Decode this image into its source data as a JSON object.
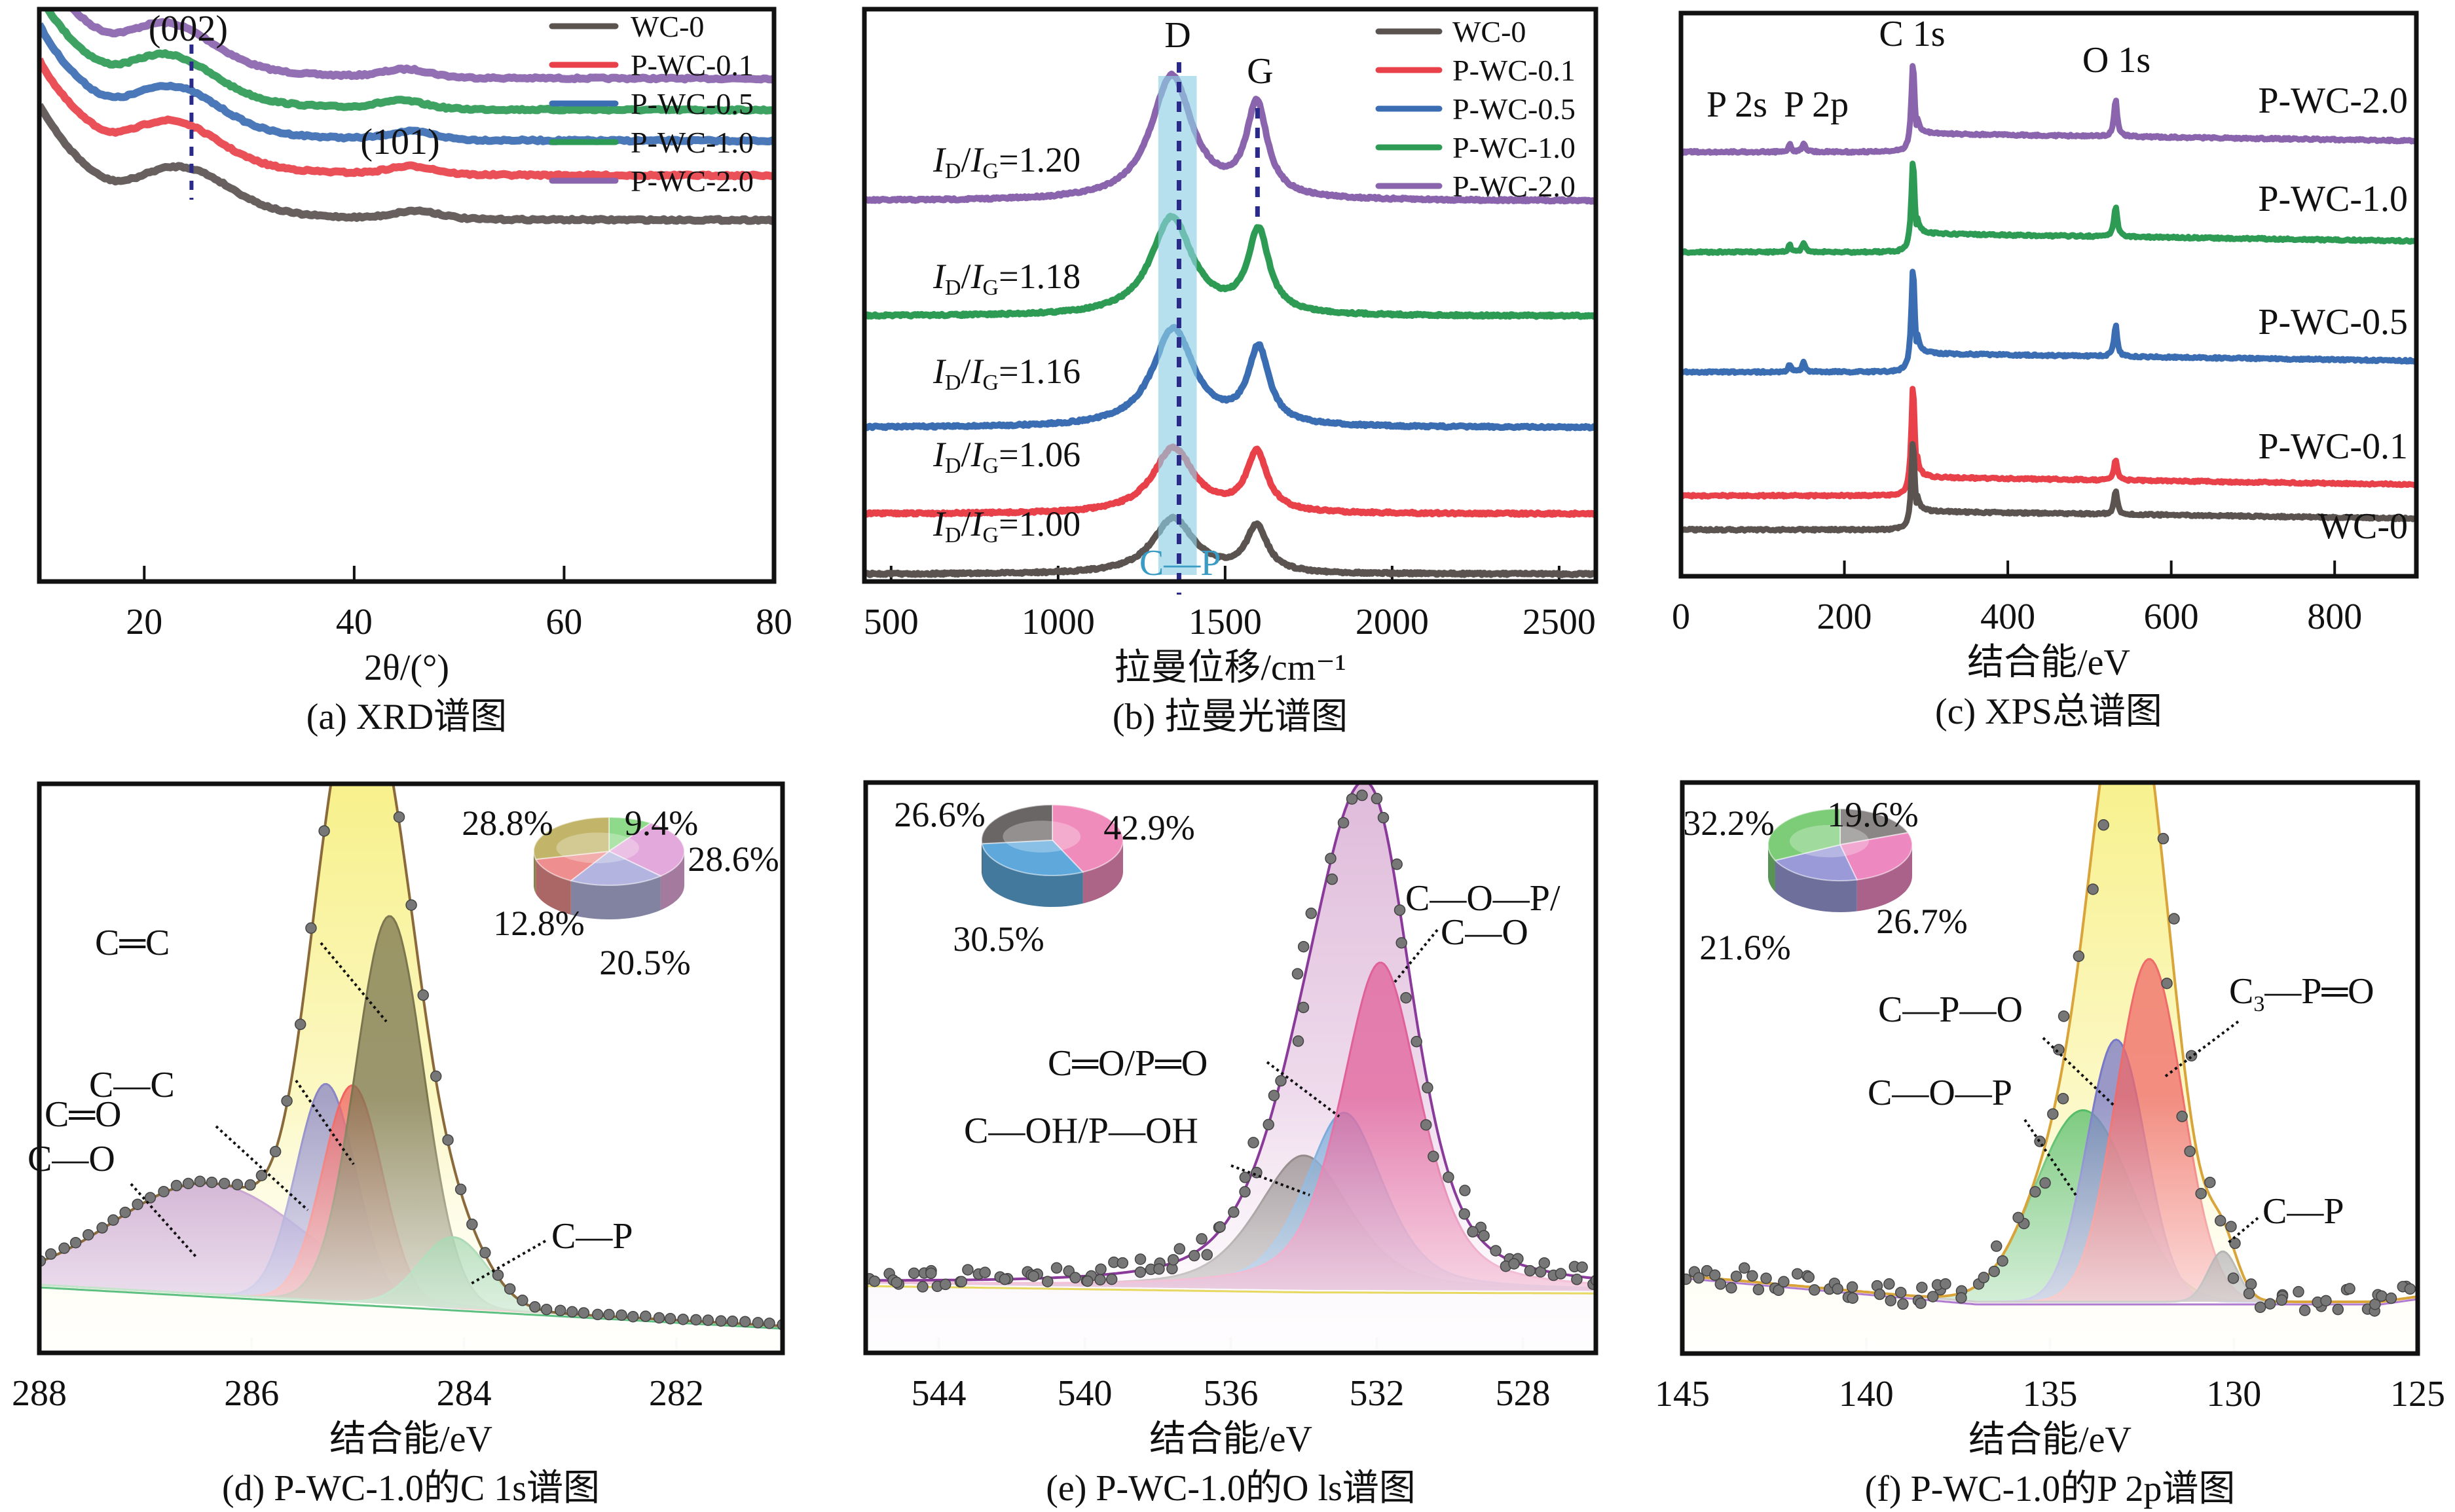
{
  "figure": {
    "panels": [
      "a",
      "b",
      "c",
      "d",
      "e",
      "f"
    ]
  },
  "colors": {
    "WC-0": "#5a5350",
    "P-WC-0.1": "#e8414a",
    "P-WC-0.5": "#3b6db3",
    "P-WC-1.0": "#2e9b55",
    "P-WC-2.0": "#8a64ad",
    "marker_line": "#2a2a8a",
    "band": "#8fd0e3",
    "cp_label": "#3a9bc4"
  },
  "chart_data": [
    {
      "id": "a",
      "type": "line",
      "caption": "(a) XRD谱图",
      "title": "",
      "xlabel": "2θ/(°)",
      "ylabel": "",
      "xlim": [
        10,
        80
      ],
      "xticks": [
        20,
        40,
        60,
        80
      ],
      "grid": false,
      "legend": {
        "placement": "top-right",
        "entries": [
          "WC-0",
          "P-WC-0.1",
          "P-WC-0.5",
          "P-WC-1.0",
          "P-WC-2.0"
        ]
      },
      "annotations": [
        {
          "text": "(002)",
          "x": 24.5
        },
        {
          "text": "(101)",
          "x": 45
        }
      ],
      "reference_line_x": 24.5,
      "series": [
        {
          "name": "P-WC-2.0",
          "offset": 4,
          "peak002": 22.5,
          "peak101": 45
        },
        {
          "name": "P-WC-1.0",
          "offset": 3,
          "peak002": 22.5,
          "peak101": 44.5
        },
        {
          "name": "P-WC-0.5",
          "offset": 2,
          "peak002": 23,
          "peak101": 45.5
        },
        {
          "name": "P-WC-0.1",
          "offset": 1,
          "peak002": 23,
          "peak101": 45.5
        },
        {
          "name": "WC-0",
          "offset": 0,
          "peak002": 24,
          "peak101": 46
        }
      ]
    },
    {
      "id": "b",
      "type": "line",
      "caption": "(b) 拉曼光谱图",
      "title": "",
      "xlabel": "拉曼位移/cm⁻¹",
      "ylabel": "",
      "xlim": [
        420,
        2610
      ],
      "xticks": [
        500,
        1000,
        1500,
        2000,
        2500
      ],
      "grid": false,
      "legend": {
        "placement": "top-right",
        "entries": [
          "WC-0",
          "P-WC-0.1",
          "P-WC-0.5",
          "P-WC-1.0",
          "P-WC-2.0"
        ]
      },
      "peak_labels": [
        {
          "text": "D",
          "x": 1350
        },
        {
          "text": "G",
          "x": 1590
        }
      ],
      "highlight_band": {
        "x_from": 1300,
        "x_to": 1415,
        "label": "C—P"
      },
      "series": [
        {
          "name": "P-WC-2.0",
          "ratio_label": "1.20",
          "D": 1340,
          "G": 1595,
          "id_ig": 1.2
        },
        {
          "name": "P-WC-1.0",
          "ratio_label": "1.18",
          "D": 1340,
          "G": 1600,
          "id_ig": 1.18
        },
        {
          "name": "P-WC-0.5",
          "ratio_label": "1.16",
          "D": 1345,
          "G": 1600,
          "id_ig": 1.16
        },
        {
          "name": "P-WC-0.1",
          "ratio_label": "1.06",
          "D": 1345,
          "G": 1595,
          "id_ig": 1.06
        },
        {
          "name": "WC-0",
          "ratio_label": "1.00",
          "D": 1345,
          "G": 1595,
          "id_ig": 1.0
        }
      ],
      "ratio_prefix_I": "I",
      "ratio_sub_D": "D",
      "ratio_sub_G": "G"
    },
    {
      "id": "c",
      "type": "line",
      "caption": "(c) XPS总谱图",
      "title": "",
      "xlabel": "结合能/eV",
      "ylabel": "",
      "xlim": [
        0,
        900
      ],
      "xticks": [
        0,
        200,
        400,
        600,
        800
      ],
      "grid": false,
      "peak_labels": [
        {
          "text": "P 2s",
          "x": 70
        },
        {
          "text": "P 2p",
          "x": 140
        },
        {
          "text": "C 1s",
          "x": 284
        },
        {
          "text": "O 1s",
          "x": 532
        }
      ],
      "series": [
        {
          "name": "P-WC-2.0",
          "C1s": 1.0,
          "O1s": 0.55,
          "P": true
        },
        {
          "name": "P-WC-1.0",
          "C1s": 1.0,
          "O1s": 0.45,
          "P": true
        },
        {
          "name": "P-WC-0.5",
          "C1s": 1.0,
          "O1s": 0.4,
          "P": true
        },
        {
          "name": "P-WC-0.1",
          "C1s": 1.0,
          "O1s": 0.25,
          "P": false
        },
        {
          "name": "WC-0",
          "C1s": 1.0,
          "O1s": 0.35,
          "P": false
        }
      ]
    },
    {
      "id": "d",
      "type": "area",
      "caption": "(d) P-WC-1.0的C 1s谱图",
      "title": "",
      "xlabel": "结合能/eV",
      "ylabel": "",
      "xlim": [
        288,
        281
      ],
      "xticks": [
        288,
        286,
        284,
        282
      ],
      "grid": false,
      "components": [
        {
          "name": "C—O",
          "center": 286.4,
          "height": 0.22,
          "width": 0.9,
          "color": "#b07cc0"
        },
        {
          "name": "C═O",
          "center": 285.3,
          "height": 0.43,
          "width": 0.28,
          "color": "#8a86c6"
        },
        {
          "name": "C—C",
          "center": 285.05,
          "height": 0.43,
          "width": 0.28,
          "color": "#f0625e"
        },
        {
          "name": "C═C",
          "center": 284.7,
          "height": 0.77,
          "width": 0.32,
          "color": "#7b7550"
        },
        {
          "name": "C—P",
          "center": 284.1,
          "height": 0.14,
          "width": 0.32,
          "color": "#5db873"
        }
      ],
      "envelope_color": "#8a6a3a",
      "envelope_fill": "#f7f08a",
      "pie": {
        "values": [
          {
            "label": "9.4%",
            "value": 9.4,
            "color": "#8fd98a"
          },
          {
            "label": "28.6%",
            "value": 28.6,
            "color": "#e4a9dc"
          },
          {
            "label": "20.5%",
            "value": 20.5,
            "color": "#b4b4e0"
          },
          {
            "label": "12.8%",
            "value": 12.8,
            "color": "#ee8e8e"
          },
          {
            "label": "28.8%",
            "value": 28.8,
            "color": "#c2b56a"
          }
        ]
      }
    },
    {
      "id": "e",
      "type": "area",
      "caption": "(e) P-WC-1.0的O ls谱图",
      "title": "",
      "xlabel": "结合能/eV",
      "ylabel": "",
      "xlim": [
        546,
        526
      ],
      "xticks": [
        544,
        540,
        536,
        532,
        528
      ],
      "grid": false,
      "components": [
        {
          "name": "C—OH/P—OH",
          "center": 534.0,
          "height": 0.25,
          "width": 1.3,
          "color": "#7a7070"
        },
        {
          "name": "C═O/P═O",
          "center": 532.9,
          "height": 0.33,
          "width": 1.1,
          "color": "#6aa0d6"
        },
        {
          "name": "C—O—P/C—O",
          "center": 531.9,
          "height": 0.61,
          "width": 1.1,
          "color": "#e0609a"
        }
      ],
      "envelope_color": "#8a3a9a",
      "envelope_fill": "#e9c9e2",
      "pie": {
        "values": [
          {
            "label": "42.9%",
            "value": 42.9,
            "color": "#f08cbc"
          },
          {
            "label": "30.5%",
            "value": 30.5,
            "color": "#5ea8dc"
          },
          {
            "label": "26.6%",
            "value": 26.6,
            "color": "#6b6666"
          }
        ]
      }
    },
    {
      "id": "f",
      "type": "area",
      "caption": "(f) P-WC-1.0的P 2p谱图",
      "title": "",
      "xlabel": "结合能/eV",
      "ylabel": "",
      "xlim": [
        145,
        125
      ],
      "xticks": [
        145,
        140,
        135,
        130,
        125
      ],
      "grid": false,
      "components": [
        {
          "name": "C—O—P",
          "center": 134.1,
          "height": 0.38,
          "width": 1.3,
          "color": "#4cb860"
        },
        {
          "name": "C—P—O",
          "center": 133.2,
          "height": 0.52,
          "width": 0.8,
          "color": "#7878c8"
        },
        {
          "name": "C₃—P═O",
          "center": 132.3,
          "height": 0.68,
          "width": 0.9,
          "color": "#ef6a6a"
        },
        {
          "name": "C—P",
          "center": 130.3,
          "height": 0.1,
          "width": 0.4,
          "color": "#666"
        }
      ],
      "envelope_color": "#d9a43a",
      "envelope_fill": "#f6f07a",
      "pie": {
        "values": [
          {
            "label": "19.6%",
            "value": 19.6,
            "color": "#8a8686"
          },
          {
            "label": "26.7%",
            "value": 26.7,
            "color": "#ee88c0"
          },
          {
            "label": "21.6%",
            "value": 21.6,
            "color": "#9a9ad8"
          },
          {
            "label": "32.2%",
            "value": 32.2,
            "color": "#7ccc78"
          }
        ]
      }
    }
  ]
}
